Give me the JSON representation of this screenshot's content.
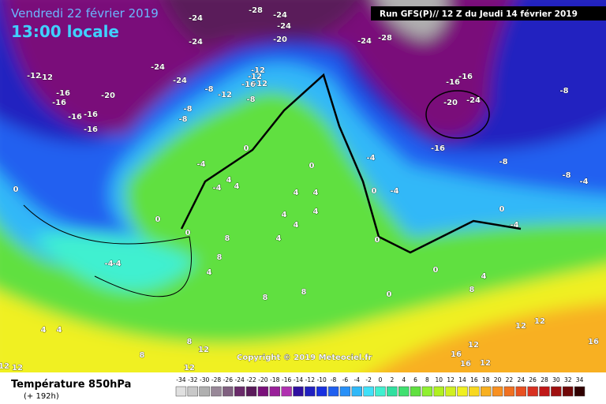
{
  "header": {
    "date": "Vendredi 22 février 2019",
    "time": "13:00 locale",
    "run": "Run GFS(P)// 12 Z du Jeudi 14 février 2019"
  },
  "copyright": "Copyright © 2019 Meteociel.fr",
  "legend": {
    "title": "Température 850hPa",
    "lead": "(+ 192h)",
    "scale": [
      -34,
      -32,
      -30,
      -28,
      -26,
      -24,
      -22,
      -20,
      -18,
      -16,
      -14,
      -12,
      -10,
      -8,
      -6,
      -4,
      -2,
      0,
      2,
      4,
      6,
      8,
      10,
      12,
      14,
      16,
      18,
      20,
      22,
      24,
      26,
      28,
      30,
      32,
      34
    ],
    "colors": [
      "#e0e0e0",
      "#c8c8c8",
      "#b0b0b0",
      "#988898",
      "#806080",
      "#6a2a6a",
      "#5a1a5a",
      "#7a107a",
      "#9a209a",
      "#b030b0",
      "#3010a0",
      "#2020c0",
      "#1830e0",
      "#2060f0",
      "#2890f8",
      "#30b8f8",
      "#40e0f8",
      "#40f0d0",
      "#30e0a0",
      "#40e070",
      "#60e040",
      "#90f030",
      "#b0f020",
      "#d0f020",
      "#f0f020",
      "#f8d820",
      "#f8b020",
      "#f89020",
      "#f07020",
      "#e85020",
      "#d83020",
      "#c01818",
      "#a01010",
      "#700808",
      "#300000"
    ]
  },
  "contour_labels": [
    -24,
    -28,
    -24,
    -24,
    -20,
    -24,
    -24,
    -28,
    -24,
    -24,
    -12,
    -12,
    -16,
    -16,
    -20,
    -16,
    -16,
    -16,
    -8,
    -12,
    -8,
    -8,
    -12,
    -12,
    -16,
    -12,
    -8,
    -16,
    -16,
    -20,
    -24,
    -8,
    -16,
    -8,
    0,
    -4,
    -4,
    0,
    4,
    4,
    -4,
    0,
    0,
    -4,
    0,
    0,
    4,
    4,
    4,
    4,
    4,
    4,
    0,
    8,
    8,
    4,
    -4,
    -4,
    0,
    -4,
    -8,
    -4,
    0,
    4,
    8,
    8,
    8,
    0,
    4,
    4,
    8,
    8,
    12,
    12,
    12,
    12,
    12,
    12,
    12,
    16,
    16,
    16,
    12
  ]
}
